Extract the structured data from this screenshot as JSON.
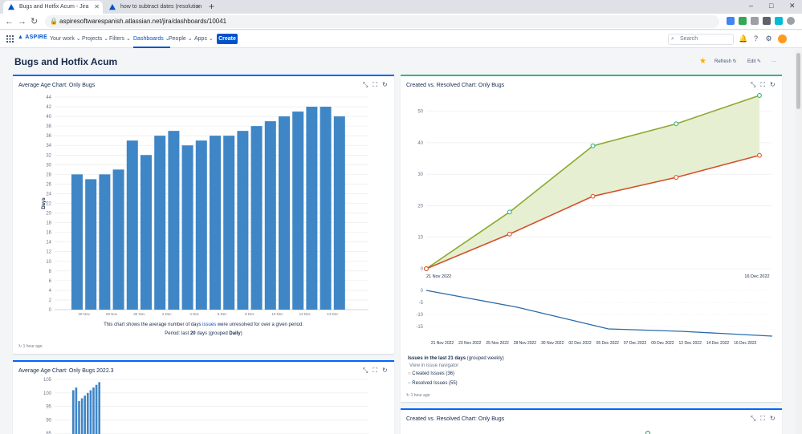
{
  "browser": {
    "tabs": [
      {
        "title": "Bugs and Hotfix Acum - Jira",
        "active": true
      },
      {
        "title": "how to subtract dates (resolution",
        "active": false
      }
    ],
    "url": "aspiresoftwarespanish.atlassian.net/jira/dashboards/10041",
    "window_controls": [
      "–",
      "□",
      "✕"
    ]
  },
  "jira": {
    "logo": "ASPIRE",
    "nav": [
      "Your work ⌄",
      "Projects ⌄",
      "Filters ⌄",
      "Dashboards ⌄",
      "People ⌄",
      "Apps ⌄"
    ],
    "create_label": "Create",
    "search_placeholder": "Search",
    "accent": "#0052cc"
  },
  "dashboard": {
    "title": "Bugs and Hotfix Acum",
    "refresh_label": "Refresh ↻",
    "edit_label": "Edit ✎",
    "more_label": "···"
  },
  "gadget_age": {
    "title": "Average Age Chart: Only Bugs",
    "note_parts": [
      "This chart shows the average number of days ",
      "issues",
      " were unresolved for over a given period."
    ],
    "period_prefix": "Period: last ",
    "period_days": "20",
    "period_mid": " days (grouped ",
    "period_group": "Daily",
    "period_suffix": ")",
    "footer": "1 hour ago"
  },
  "gadget_created": {
    "title": "Created vs. Resolved Chart: Only Bugs",
    "issues_heading_prefix": "Issues in the last ",
    "issues_heading_days": "21 days",
    "issues_heading_suffix": " (grouped weekly)",
    "view_link": "View in issue navigator",
    "legend": [
      {
        "label": "Created Issues (36)",
        "color": "#de5a35"
      },
      {
        "label": "Resolved Issues (55)",
        "color": "#36b37e"
      }
    ],
    "footer": "1 hour ago"
  },
  "gadget_age2": {
    "title": "Average Age Chart: Only Bugs 2022.3"
  },
  "gadget_created2": {
    "title": "Created vs. Resolved Chart: Only Bugs"
  },
  "chart_data": [
    {
      "type": "bar",
      "ylabel": "Days",
      "ylim": [
        0,
        44
      ],
      "yticks": [
        0,
        2,
        4,
        6,
        8,
        10,
        12,
        14,
        16,
        18,
        20,
        22,
        24,
        26,
        28,
        30,
        32,
        34,
        36,
        38,
        40,
        42,
        44
      ],
      "x_tick_labels": [
        "28 Nov",
        "28 Nov",
        "30 Nov",
        "2 Dec",
        "4 Dec",
        "6 Dec",
        "8 Dec",
        "10 Dec",
        "12 Dec",
        "14 Dec"
      ],
      "values": [
        28,
        27,
        28,
        29,
        35,
        32,
        36,
        37,
        34,
        35,
        36,
        36,
        37,
        38,
        39,
        40,
        41,
        42,
        42,
        40
      ],
      "color": "#3f86c7",
      "grid": true
    },
    {
      "type": "area",
      "ylim": [
        0,
        55
      ],
      "yticks": [
        0,
        10,
        20,
        30,
        40,
        50
      ],
      "x_tick_labels": [
        "21 Nov 2022",
        "16 Dec 2022"
      ],
      "x_index": [
        0,
        1,
        2,
        3,
        4
      ],
      "series": [
        {
          "values": [
            0,
            18,
            39,
            46,
            55
          ],
          "color": "#8aaa2e"
        },
        {
          "values": [
            0,
            11,
            23,
            29,
            36
          ],
          "color": "#d2512d"
        }
      ],
      "fill": "#e6efd2",
      "grid": true
    },
    {
      "type": "line",
      "ylim": [
        -18,
        0
      ],
      "yticks": [
        0,
        -5,
        -10,
        -15
      ],
      "x_tick_labels": [
        "21 Nov 2022",
        "23 Nov 2022",
        "25 Nov 2022",
        "28 Nov 2022",
        "30 Nov 2022",
        "02 Dec 2022",
        "05 Dec 2022",
        "07 Dec 2022",
        "09 Dec 2022",
        "12 Dec 2022",
        "14 Dec 2022",
        "16 Dec 2022"
      ],
      "x": [
        0,
        5,
        10,
        14,
        19
      ],
      "values": [
        0,
        -7,
        -16,
        -17,
        -19
      ],
      "color": "#2c6aa8"
    },
    {
      "type": "bar",
      "ylim": [
        80,
        105
      ],
      "yticks": [
        85,
        90,
        95,
        100,
        105
      ],
      "values": [
        101,
        102,
        97,
        98,
        99,
        100,
        101,
        102,
        103,
        104
      ],
      "color": "#3f86c7",
      "partial": true
    }
  ]
}
